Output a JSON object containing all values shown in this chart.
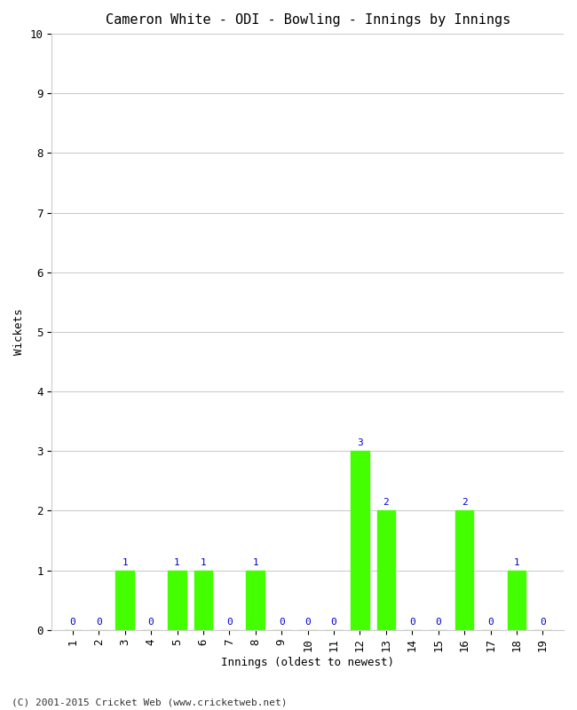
{
  "title": "Cameron White - ODI - Bowling - Innings by Innings",
  "xlabel": "Innings (oldest to newest)",
  "ylabel": "Wickets",
  "footnote": "(C) 2001-2015 Cricket Web (www.cricketweb.net)",
  "innings": [
    1,
    2,
    3,
    4,
    5,
    6,
    7,
    8,
    9,
    10,
    11,
    12,
    13,
    14,
    15,
    16,
    17,
    18,
    19
  ],
  "wickets": [
    0,
    0,
    1,
    0,
    1,
    1,
    0,
    1,
    0,
    0,
    0,
    3,
    2,
    0,
    0,
    2,
    0,
    1,
    0
  ],
  "bar_color": "#44ff00",
  "label_color": "#0000cc",
  "ylim": [
    0,
    10
  ],
  "yticks": [
    0,
    1,
    2,
    3,
    4,
    5,
    6,
    7,
    8,
    9,
    10
  ],
  "background_color": "#ffffff",
  "grid_color": "#cccccc",
  "title_fontsize": 11,
  "axis_label_fontsize": 9,
  "tick_label_fontsize": 9,
  "annotation_fontsize": 8,
  "footnote_fontsize": 8
}
